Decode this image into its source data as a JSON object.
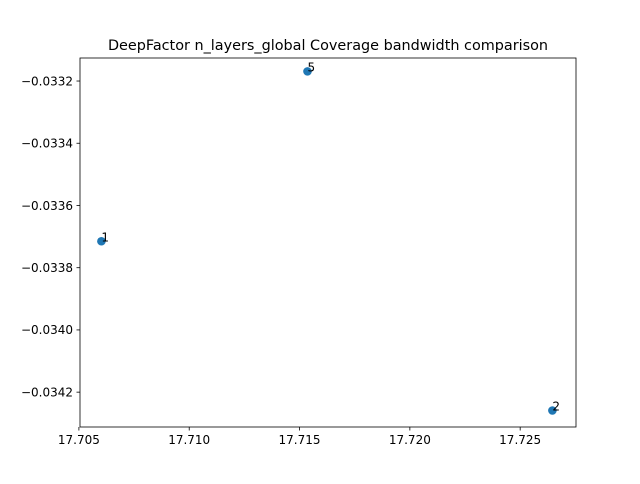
{
  "chart_data": {
    "type": "scatter",
    "title": "DeepFactor n_layers_global Coverage bandwidth comparison",
    "xlabel": "",
    "ylabel": "",
    "xlim": [
      17.70505,
      17.72753
    ],
    "ylim": [
      -0.034312,
      -0.033126
    ],
    "grid": false,
    "marker_color": "#1f77b4",
    "x_ticks": [
      17.705,
      17.71,
      17.715,
      17.72,
      17.725
    ],
    "x_tick_labels": [
      "17.705",
      "17.710",
      "17.715",
      "17.720",
      "17.725"
    ],
    "y_ticks": [
      -0.0332,
      -0.0334,
      -0.0336,
      -0.0338,
      -0.034,
      -0.0342
    ],
    "y_tick_labels": [
      "−0.0332",
      "−0.0334",
      "−0.0336",
      "−0.0338",
      "−0.0340",
      "−0.0342"
    ],
    "points": [
      {
        "label": "1",
        "x": 17.70602,
        "y": -0.033715
      },
      {
        "label": "5",
        "x": 17.71536,
        "y": -0.033169
      },
      {
        "label": "2",
        "x": 17.72646,
        "y": -0.034259
      }
    ]
  }
}
